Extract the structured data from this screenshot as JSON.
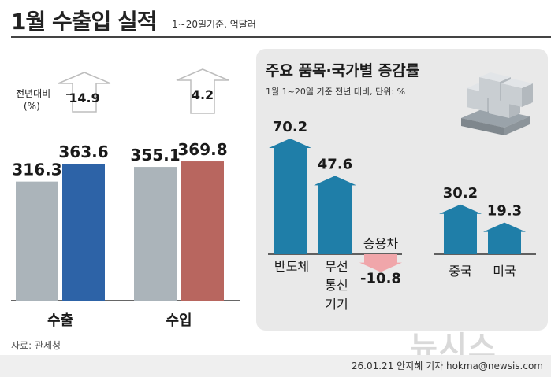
{
  "title": {
    "main": "1월 수출입 실적",
    "subtitle": "1~20일기준, 억달러"
  },
  "colors": {
    "gray_bar": "#abb4ba",
    "export_bar": "#2d63a7",
    "import_bar": "#b8665f",
    "item_bar": "#1f7ea8",
    "neg_bar": "#f0a6aa",
    "panel": "#e9e9e9"
  },
  "chart_data": [
    {
      "type": "bar",
      "title": "",
      "categories": [
        "수출",
        "수입"
      ],
      "series": [
        {
          "values": [
            316.3,
            355.1
          ]
        },
        {
          "values": [
            363.6,
            369.8
          ]
        }
      ],
      "change": {
        "label": "전년대비\n(%)",
        "values": [
          14.9,
          4.2
        ]
      },
      "xlabel": "",
      "ylabel": "",
      "ylim": [
        0,
        420
      ]
    },
    {
      "type": "bar",
      "title": "주요 품목·국가별 증감률",
      "subtitle": "1월 1~20일 기준 전년 대비, 단위: %",
      "groups": [
        {
          "categories": [
            "반도체",
            "무선\n통신\n기기",
            "승용차"
          ],
          "values": [
            70.2,
            47.6,
            -10.8
          ]
        },
        {
          "categories": [
            "중국",
            "미국"
          ],
          "values": [
            30.2,
            19.3
          ]
        }
      ],
      "xlabel": "",
      "ylabel": ""
    }
  ],
  "source": "자료: 관세청",
  "credit": "26.01.21 안지혜 기자 hokma@newsis.com",
  "watermark": "뉴시스"
}
